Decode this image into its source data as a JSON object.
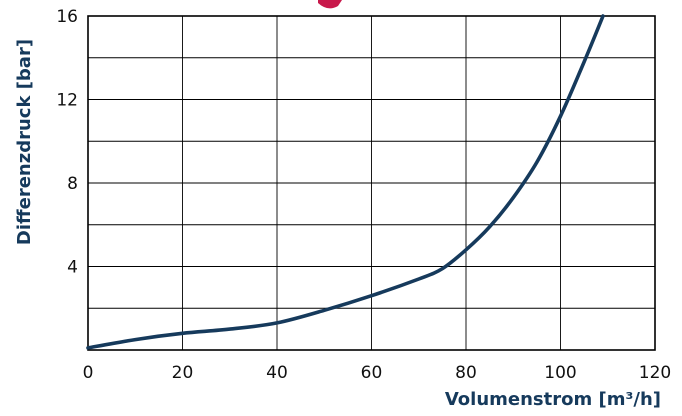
{
  "chart_data": {
    "type": "line",
    "xlabel": "Volumenstrom [m³/h]",
    "ylabel": "Differenzdruck [bar]",
    "xlim": [
      0,
      120
    ],
    "ylim": [
      0,
      16
    ],
    "x_ticks": [
      "0",
      "20",
      "40",
      "60",
      "80",
      "100",
      "120"
    ],
    "y_ticks": [
      "4",
      "8",
      "12",
      "16"
    ],
    "grid": true,
    "grid_x_step": 20,
    "grid_y_step": 2,
    "colors": {
      "line": "#163a5c",
      "axis_title": "#163a5c",
      "frame": "#000000",
      "top_decoration": "#c8194b"
    },
    "series": [
      {
        "x": [
          0,
          10,
          20,
          30,
          40,
          50,
          60,
          70,
          75,
          80,
          85,
          90,
          95,
          100,
          105,
          109
        ],
        "y": [
          0.1,
          0.5,
          0.8,
          1.0,
          1.3,
          1.9,
          2.6,
          3.4,
          3.9,
          4.8,
          5.9,
          7.3,
          9.0,
          11.2,
          13.8,
          16.0
        ]
      }
    ]
  }
}
